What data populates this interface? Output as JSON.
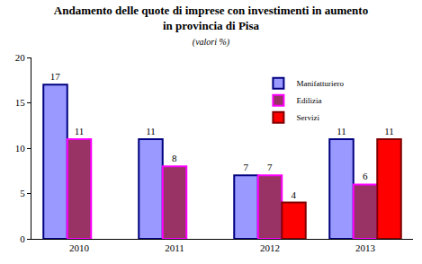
{
  "chart_data": {
    "type": "bar",
    "title": "Andamento delle quote di imprese con investimenti in aumento\nin provincia di Pisa",
    "subtitle": "(valori %)",
    "categories": [
      "2010",
      "2011",
      "2012",
      "2013"
    ],
    "series": [
      {
        "name": "Manifatturiero",
        "color": "#9999ff",
        "values": [
          17,
          11,
          7,
          11
        ]
      },
      {
        "name": "Edilizia",
        "color": "#993366",
        "values": [
          11,
          8,
          7,
          6
        ]
      },
      {
        "name": "Servizi",
        "color": "#ff0000",
        "values": [
          null,
          null,
          4,
          11
        ]
      }
    ],
    "ylim": [
      0,
      20
    ],
    "yticks": [
      0,
      5,
      10,
      15,
      20
    ],
    "grid": false,
    "legend": "top right",
    "data_labels": true
  }
}
